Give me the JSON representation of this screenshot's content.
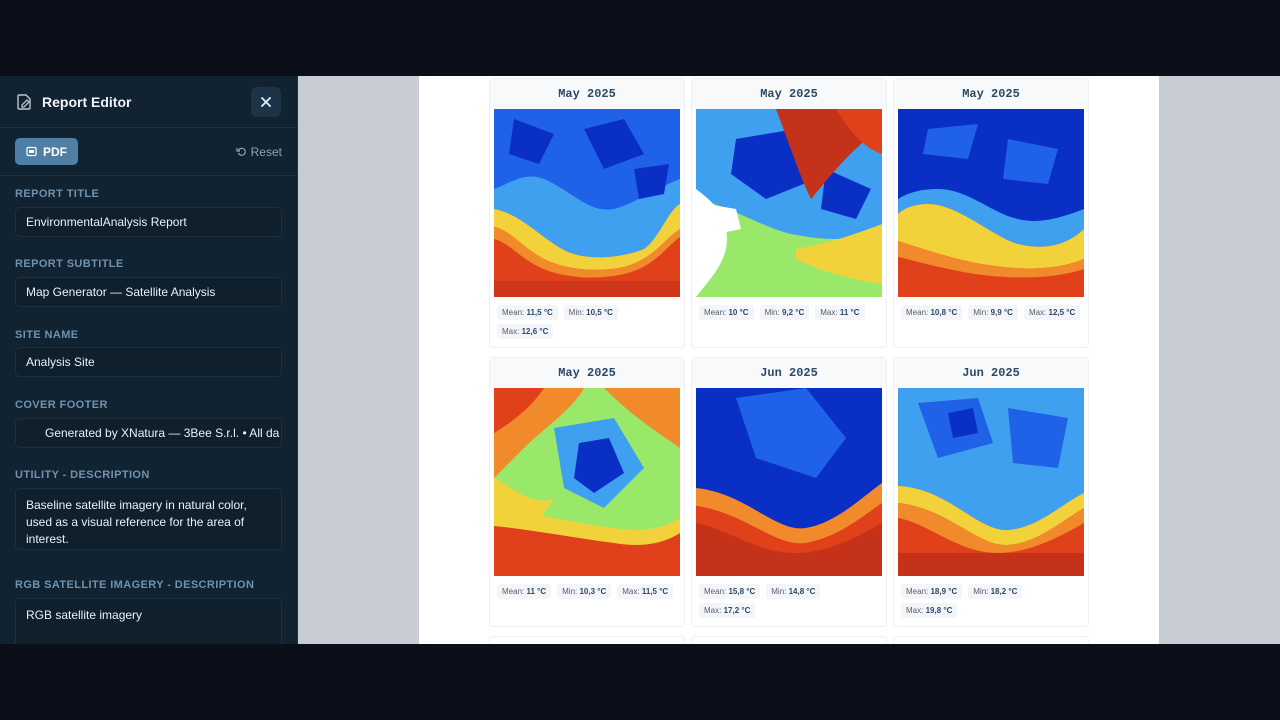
{
  "editor": {
    "title": "Report Editor",
    "pdf_label": "PDF",
    "reset_label": "Reset",
    "fields": {
      "report_title": {
        "label": "REPORT TITLE",
        "value": "EnvironmentalAnalysis Report"
      },
      "report_subtitle": {
        "label": "REPORT SUBTITLE",
        "value": "Map Generator — Satellite Analysis"
      },
      "site_name": {
        "label": "SITE NAME",
        "value": "Analysis Site"
      },
      "cover_footer": {
        "label": "COVER FOOTER",
        "value": "Generated by XNatura — 3Bee S.r.l. • All da"
      },
      "utility_description": {
        "label": "UTILITY - DESCRIPTION",
        "value": "Baseline satellite imagery in natural color, used as a visual reference for the area of interest."
      },
      "rgb_description": {
        "label": "RGB SATELLITE IMAGERY - DESCRIPTION",
        "value": "RGB satellite imagery"
      }
    }
  },
  "preview": {
    "cards": [
      {
        "date": "May 2025",
        "mean_label": "Mean:",
        "mean": "11,5 °C",
        "min_label": "Min:",
        "min": "10,5 °C",
        "max_label": "Max:",
        "max": "12,6 °C"
      },
      {
        "date": "May 2025",
        "mean_label": "Mean:",
        "mean": "10 °C",
        "min_label": "Min:",
        "min": "9,2 °C",
        "max_label": "Max:",
        "max": "11 °C"
      },
      {
        "date": "May 2025",
        "mean_label": "Mean:",
        "mean": "10,8 °C",
        "min_label": "Min:",
        "min": "9,9 °C",
        "max_label": "Max:",
        "max": "12,5 °C"
      },
      {
        "date": "May 2025",
        "mean_label": "Mean:",
        "mean": "11 °C",
        "min_label": "Min:",
        "min": "10,3 °C",
        "max_label": "Max:",
        "max": "11,5 °C"
      },
      {
        "date": "Jun 2025",
        "mean_label": "Mean:",
        "mean": "15,8 °C",
        "min_label": "Min:",
        "min": "14,8 °C",
        "max_label": "Max:",
        "max": "17,2 °C"
      },
      {
        "date": "Jun 2025",
        "mean_label": "Mean:",
        "mean": "18,9 °C",
        "min_label": "Min:",
        "min": "18,2 °C",
        "max_label": "Max:",
        "max": "19,8 °C"
      }
    ]
  },
  "colors": {
    "accent": "#4f7fa5",
    "sidebar_bg": "#112230",
    "label": "#6f93ae",
    "map_blue_dark": "#0a2fc4",
    "map_blue_light": "#3fa0f0",
    "map_yellow": "#f2d23a",
    "map_red": "#e0401a"
  },
  "icons": [
    "document-edit-icon",
    "close-icon",
    "pdf-icon",
    "reset-icon"
  ]
}
